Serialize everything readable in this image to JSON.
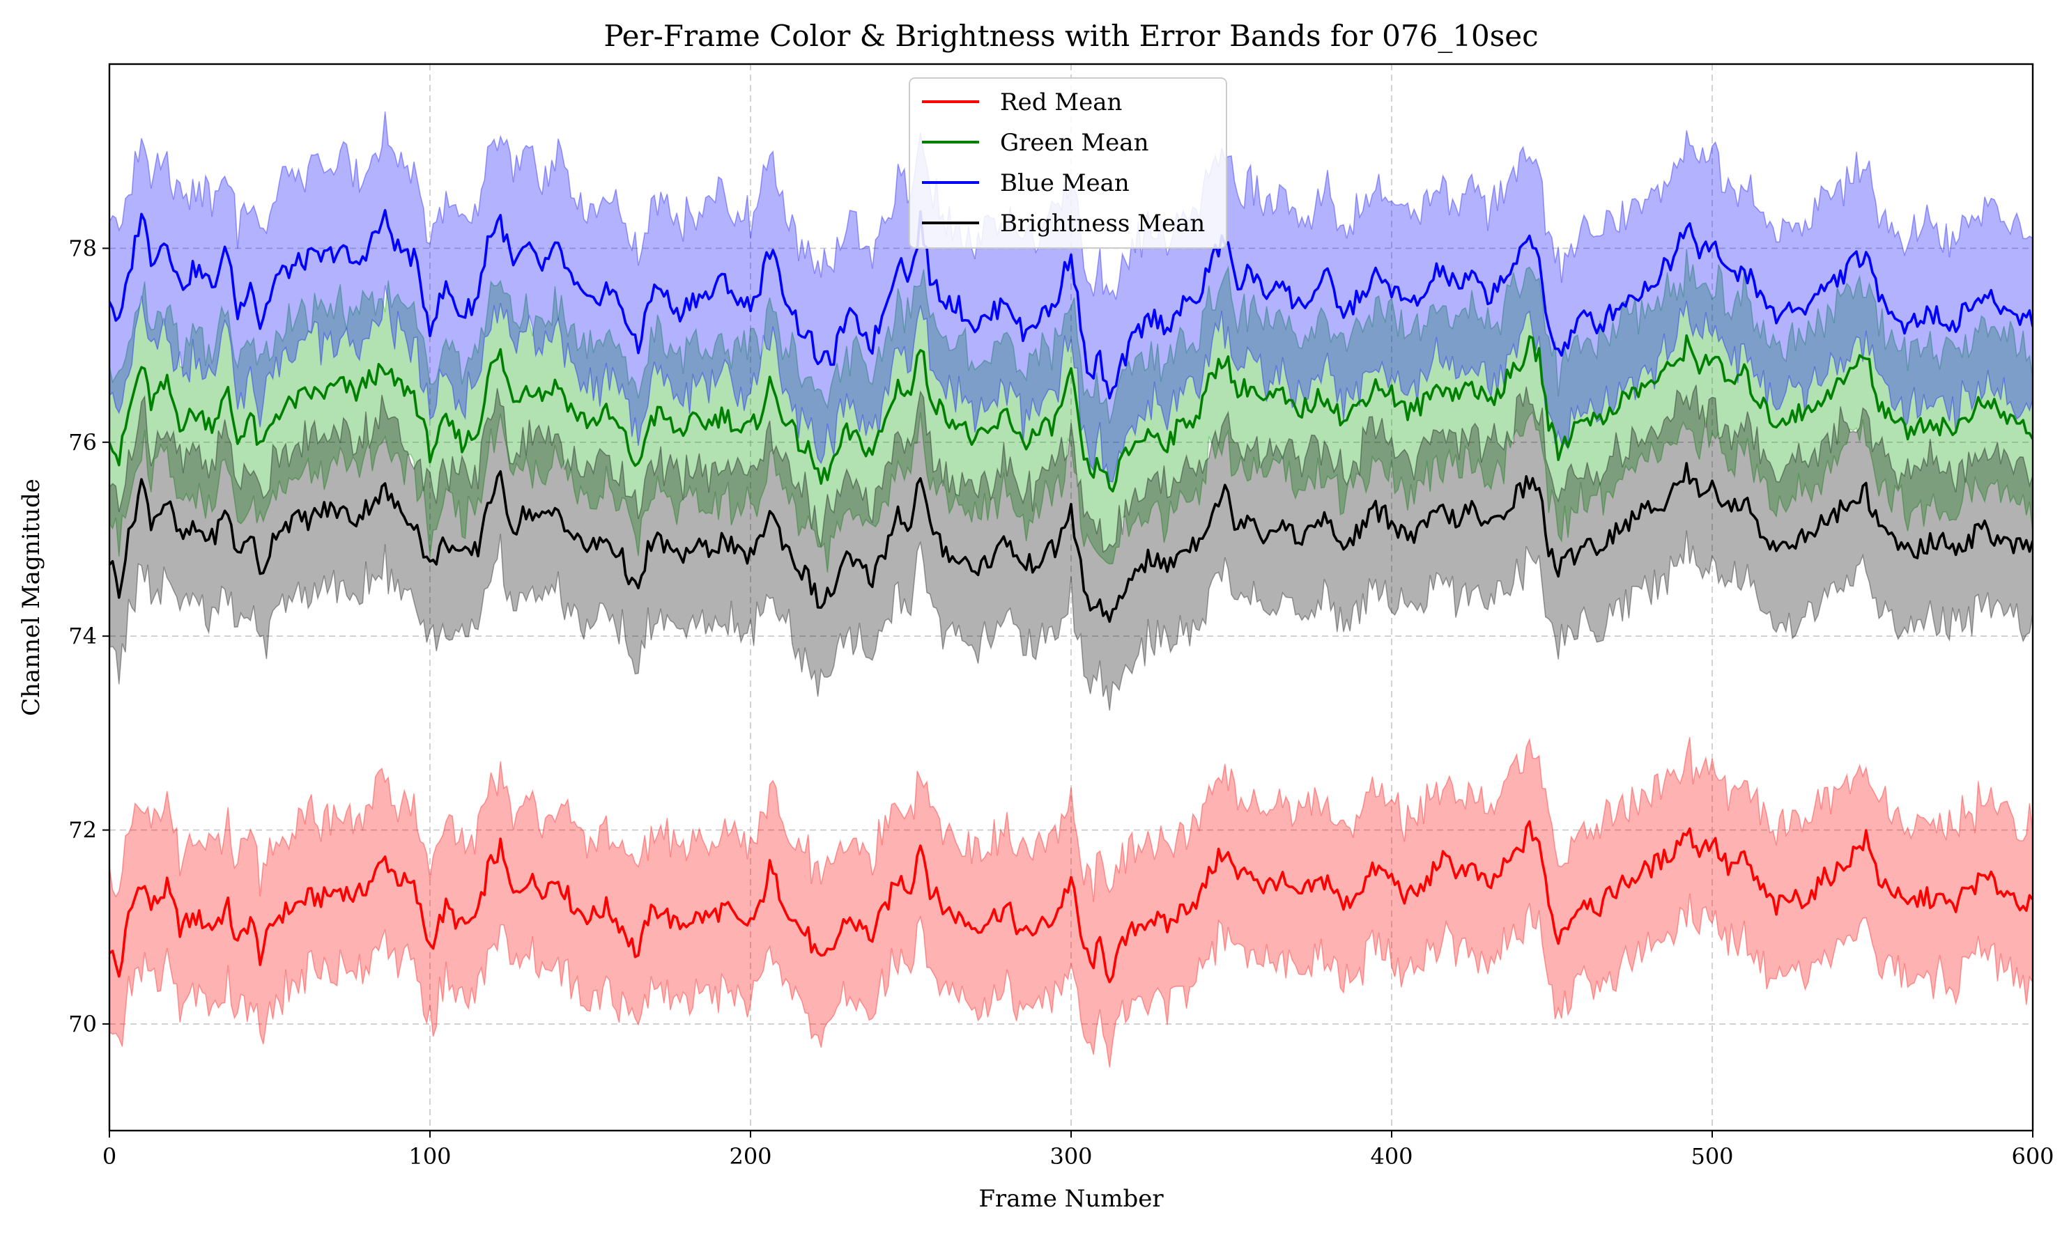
{
  "chart_data": {
    "type": "line",
    "title": "Per-Frame Color & Brightness with Error Bands for 076_10sec",
    "xlabel": "Frame Number",
    "ylabel": "Channel Magnitude",
    "xlim": [
      0,
      600
    ],
    "ylim": [
      68.9,
      79.9
    ],
    "xticks": [
      0,
      100,
      200,
      300,
      400,
      500,
      600
    ],
    "yticks": [
      70,
      72,
      74,
      76,
      78
    ],
    "grid": true,
    "legend_position": "top-center",
    "series": [
      {
        "name": "Red Mean",
        "color": "#ff0000",
        "band_color": "#ff0000",
        "band_halfwidth": 0.8,
        "x": [
          0,
          3,
          6,
          10,
          13,
          18,
          22,
          27,
          32,
          37,
          40,
          44,
          47,
          52,
          57,
          62,
          67,
          72,
          77,
          82,
          86,
          90,
          95,
          100,
          105,
          110,
          115,
          118,
          122,
          126,
          130,
          135,
          140,
          145,
          150,
          155,
          160,
          165,
          168,
          172,
          177,
          182,
          187,
          192,
          197,
          202,
          206,
          210,
          215,
          218,
          222,
          226,
          230,
          234,
          238,
          242,
          246,
          250,
          253,
          256,
          260,
          265,
          270,
          275,
          280,
          285,
          290,
          295,
          300,
          303,
          306,
          309,
          312,
          316,
          320,
          325,
          330,
          335,
          340,
          344,
          348,
          352,
          356,
          360,
          365,
          370,
          375,
          380,
          385,
          390,
          395,
          400,
          405,
          410,
          415,
          420,
          425,
          430,
          435,
          440,
          443,
          446,
          449,
          452,
          456,
          460,
          465,
          470,
          475,
          480,
          485,
          488,
          492,
          496,
          500,
          505,
          510,
          515,
          520,
          525,
          530,
          535,
          540,
          545,
          548,
          552,
          556,
          560,
          565,
          570,
          575,
          580,
          585,
          590,
          595,
          600
        ],
        "values": [
          70.8,
          70.5,
          71.1,
          71.5,
          71.2,
          71.4,
          71.0,
          71.1,
          71.0,
          71.2,
          70.8,
          71.1,
          70.7,
          71.1,
          71.2,
          71.3,
          71.3,
          71.4,
          71.3,
          71.5,
          71.7,
          71.5,
          71.4,
          70.8,
          71.2,
          71.0,
          71.1,
          71.6,
          71.8,
          71.3,
          71.5,
          71.4,
          71.5,
          71.2,
          71.1,
          71.2,
          71.0,
          70.7,
          71.1,
          71.2,
          71.0,
          71.1,
          71.1,
          71.2,
          71.0,
          71.1,
          71.6,
          71.3,
          71.0,
          70.9,
          70.6,
          70.8,
          71.1,
          71.0,
          70.9,
          71.2,
          71.5,
          71.4,
          71.9,
          71.4,
          71.2,
          71.1,
          71.0,
          71.1,
          71.2,
          70.9,
          71.0,
          71.1,
          71.5,
          70.9,
          70.6,
          70.8,
          70.5,
          70.8,
          71.0,
          71.1,
          71.0,
          71.2,
          71.3,
          71.6,
          71.8,
          71.5,
          71.6,
          71.4,
          71.5,
          71.3,
          71.4,
          71.5,
          71.2,
          71.4,
          71.6,
          71.5,
          71.3,
          71.4,
          71.7,
          71.6,
          71.6,
          71.4,
          71.6,
          71.8,
          72.0,
          71.9,
          71.2,
          70.9,
          71.1,
          71.3,
          71.2,
          71.4,
          71.5,
          71.6,
          71.7,
          71.8,
          72.0,
          71.8,
          71.9,
          71.6,
          71.7,
          71.4,
          71.2,
          71.3,
          71.3,
          71.5,
          71.6,
          71.8,
          71.9,
          71.5,
          71.4,
          71.2,
          71.3,
          71.3,
          71.2,
          71.4,
          71.5,
          71.4,
          71.3,
          71.2
        ]
      },
      {
        "name": "Green Mean",
        "color": "#008000",
        "band_color": "#00a000",
        "band_halfwidth": 0.8,
        "x": [
          0,
          3,
          6,
          10,
          13,
          18,
          22,
          27,
          32,
          37,
          40,
          44,
          47,
          52,
          57,
          62,
          67,
          72,
          77,
          82,
          86,
          90,
          95,
          100,
          105,
          110,
          115,
          118,
          122,
          126,
          130,
          135,
          140,
          145,
          150,
          155,
          160,
          165,
          168,
          172,
          177,
          182,
          187,
          192,
          197,
          202,
          206,
          210,
          215,
          218,
          222,
          226,
          230,
          234,
          238,
          242,
          246,
          250,
          253,
          256,
          260,
          265,
          270,
          275,
          280,
          285,
          290,
          295,
          300,
          303,
          306,
          309,
          312,
          316,
          320,
          325,
          330,
          335,
          340,
          344,
          348,
          352,
          356,
          360,
          365,
          370,
          375,
          380,
          385,
          390,
          395,
          400,
          405,
          410,
          415,
          420,
          425,
          430,
          435,
          440,
          443,
          446,
          449,
          452,
          456,
          460,
          465,
          470,
          475,
          480,
          485,
          488,
          492,
          496,
          500,
          505,
          510,
          515,
          520,
          525,
          530,
          535,
          540,
          545,
          548,
          552,
          556,
          560,
          565,
          570,
          575,
          580,
          585,
          590,
          595,
          600
        ],
        "values": [
          76.1,
          75.8,
          76.3,
          76.8,
          76.4,
          76.6,
          76.2,
          76.3,
          76.2,
          76.5,
          76.0,
          76.3,
          75.9,
          76.3,
          76.4,
          76.5,
          76.5,
          76.6,
          76.5,
          76.7,
          76.7,
          76.6,
          76.5,
          75.9,
          76.2,
          76.0,
          76.1,
          76.7,
          76.9,
          76.4,
          76.6,
          76.5,
          76.6,
          76.3,
          76.2,
          76.3,
          76.1,
          75.7,
          76.2,
          76.3,
          76.1,
          76.2,
          76.2,
          76.3,
          76.1,
          76.2,
          76.6,
          76.3,
          76.0,
          75.9,
          75.6,
          75.8,
          76.1,
          76.0,
          75.9,
          76.2,
          76.6,
          76.5,
          77.0,
          76.5,
          76.3,
          76.2,
          76.0,
          76.1,
          76.3,
          76.0,
          76.1,
          76.2,
          76.7,
          76.0,
          75.6,
          75.8,
          75.5,
          75.8,
          76.0,
          76.1,
          76.0,
          76.2,
          76.3,
          76.7,
          76.9,
          76.5,
          76.6,
          76.4,
          76.5,
          76.3,
          76.4,
          76.5,
          76.2,
          76.4,
          76.6,
          76.5,
          76.3,
          76.4,
          76.6,
          76.5,
          76.6,
          76.4,
          76.6,
          76.8,
          77.0,
          76.9,
          76.2,
          75.9,
          76.1,
          76.3,
          76.2,
          76.4,
          76.5,
          76.6,
          76.7,
          76.8,
          77.0,
          76.8,
          76.9,
          76.6,
          76.7,
          76.4,
          76.2,
          76.3,
          76.3,
          76.5,
          76.6,
          76.8,
          76.9,
          76.4,
          76.3,
          76.1,
          76.2,
          76.2,
          76.1,
          76.3,
          76.4,
          76.3,
          76.2,
          76.1
        ]
      },
      {
        "name": "Blue Mean",
        "color": "#0000ff",
        "band_color": "#0000ff",
        "band_halfwidth": 0.9,
        "x": [
          0,
          3,
          6,
          10,
          13,
          18,
          22,
          27,
          32,
          37,
          40,
          44,
          47,
          52,
          57,
          62,
          67,
          72,
          77,
          82,
          86,
          90,
          95,
          100,
          105,
          110,
          115,
          118,
          122,
          126,
          130,
          135,
          140,
          145,
          150,
          155,
          160,
          165,
          168,
          172,
          177,
          182,
          187,
          192,
          197,
          202,
          206,
          210,
          215,
          218,
          222,
          226,
          230,
          234,
          238,
          242,
          246,
          250,
          253,
          256,
          260,
          265,
          270,
          275,
          280,
          285,
          290,
          295,
          300,
          303,
          306,
          309,
          312,
          316,
          320,
          325,
          330,
          335,
          340,
          344,
          348,
          352,
          356,
          360,
          365,
          370,
          375,
          380,
          385,
          390,
          395,
          400,
          405,
          410,
          415,
          420,
          425,
          430,
          435,
          440,
          443,
          446,
          449,
          452,
          456,
          460,
          465,
          470,
          475,
          480,
          485,
          488,
          492,
          496,
          500,
          505,
          510,
          515,
          520,
          525,
          530,
          535,
          540,
          545,
          548,
          552,
          556,
          560,
          565,
          570,
          575,
          580,
          585,
          590,
          595,
          600
        ],
        "values": [
          77.5,
          77.2,
          77.7,
          78.4,
          77.9,
          78.1,
          77.6,
          77.8,
          77.6,
          78.0,
          77.3,
          77.7,
          77.2,
          77.7,
          77.8,
          77.9,
          77.9,
          78.0,
          77.8,
          78.1,
          78.3,
          78.0,
          77.9,
          77.2,
          77.6,
          77.3,
          77.5,
          78.1,
          78.3,
          77.8,
          78.0,
          77.8,
          78.0,
          77.6,
          77.4,
          77.6,
          77.4,
          76.9,
          77.5,
          77.6,
          77.3,
          77.5,
          77.5,
          77.7,
          77.4,
          77.5,
          78.0,
          77.6,
          77.2,
          77.1,
          76.8,
          76.9,
          77.3,
          77.2,
          77.0,
          77.4,
          77.9,
          77.7,
          78.3,
          77.7,
          77.5,
          77.4,
          77.2,
          77.3,
          77.5,
          77.1,
          77.3,
          77.4,
          78.0,
          77.2,
          76.6,
          76.9,
          76.4,
          76.8,
          77.1,
          77.3,
          77.2,
          77.4,
          77.5,
          77.9,
          78.1,
          77.6,
          77.8,
          77.5,
          77.7,
          77.4,
          77.5,
          77.7,
          77.3,
          77.5,
          77.7,
          77.6,
          77.4,
          77.5,
          77.8,
          77.6,
          77.7,
          77.5,
          77.7,
          77.9,
          78.1,
          77.9,
          77.2,
          76.9,
          77.1,
          77.3,
          77.2,
          77.4,
          77.5,
          77.6,
          77.8,
          77.9,
          78.3,
          78.0,
          78.1,
          77.7,
          77.8,
          77.5,
          77.3,
          77.4,
          77.4,
          77.6,
          77.7,
          77.9,
          77.9,
          77.5,
          77.4,
          77.2,
          77.3,
          77.3,
          77.2,
          77.4,
          77.5,
          77.4,
          77.3,
          77.3
        ]
      },
      {
        "name": "Brightness Mean",
        "color": "#000000",
        "band_color": "#000000",
        "band_halfwidth": 0.8,
        "x": [
          0,
          3,
          6,
          10,
          13,
          18,
          22,
          27,
          32,
          37,
          40,
          44,
          47,
          52,
          57,
          62,
          67,
          72,
          77,
          82,
          86,
          90,
          95,
          100,
          105,
          110,
          115,
          118,
          122,
          126,
          130,
          135,
          140,
          145,
          150,
          155,
          160,
          165,
          168,
          172,
          177,
          182,
          187,
          192,
          197,
          202,
          206,
          210,
          215,
          218,
          222,
          226,
          230,
          234,
          238,
          242,
          246,
          250,
          253,
          256,
          260,
          265,
          270,
          275,
          280,
          285,
          290,
          295,
          300,
          303,
          306,
          309,
          312,
          316,
          320,
          325,
          330,
          335,
          340,
          344,
          348,
          352,
          356,
          360,
          365,
          370,
          375,
          380,
          385,
          390,
          395,
          400,
          405,
          410,
          415,
          420,
          425,
          430,
          435,
          440,
          443,
          446,
          449,
          452,
          456,
          460,
          465,
          470,
          475,
          480,
          485,
          488,
          492,
          496,
          500,
          505,
          510,
          515,
          520,
          525,
          530,
          535,
          540,
          545,
          548,
          552,
          556,
          560,
          565,
          570,
          575,
          580,
          585,
          590,
          595,
          600
        ],
        "values": [
          74.8,
          74.5,
          75.0,
          75.6,
          75.2,
          75.4,
          75.0,
          75.1,
          75.0,
          75.3,
          74.8,
          75.1,
          74.6,
          75.1,
          75.2,
          75.2,
          75.3,
          75.3,
          75.2,
          75.4,
          75.5,
          75.3,
          75.2,
          74.7,
          75.0,
          74.8,
          74.9,
          75.4,
          75.6,
          75.1,
          75.3,
          75.2,
          75.3,
          75.0,
          74.9,
          75.0,
          74.8,
          74.4,
          74.9,
          75.0,
          74.8,
          74.9,
          74.9,
          75.0,
          74.8,
          74.9,
          75.3,
          75.0,
          74.7,
          74.6,
          74.3,
          74.5,
          74.8,
          74.7,
          74.6,
          74.9,
          75.3,
          75.1,
          75.7,
          75.1,
          74.9,
          74.8,
          74.7,
          74.8,
          75.0,
          74.7,
          74.8,
          74.9,
          75.3,
          74.7,
          74.2,
          74.4,
          74.1,
          74.4,
          74.7,
          74.8,
          74.7,
          74.9,
          75.0,
          75.3,
          75.5,
          75.1,
          75.3,
          75.0,
          75.2,
          75.0,
          75.1,
          75.2,
          74.9,
          75.1,
          75.3,
          75.2,
          75.0,
          75.1,
          75.3,
          75.2,
          75.3,
          75.1,
          75.3,
          75.5,
          75.6,
          75.5,
          74.9,
          74.7,
          74.8,
          75.0,
          74.9,
          75.1,
          75.2,
          75.3,
          75.4,
          75.5,
          75.7,
          75.5,
          75.6,
          75.3,
          75.4,
          75.1,
          74.9,
          75.0,
          75.0,
          75.2,
          75.3,
          75.4,
          75.5,
          75.1,
          75.0,
          74.9,
          74.9,
          75.0,
          74.9,
          75.0,
          75.1,
          75.0,
          74.9,
          74.9
        ]
      }
    ]
  }
}
